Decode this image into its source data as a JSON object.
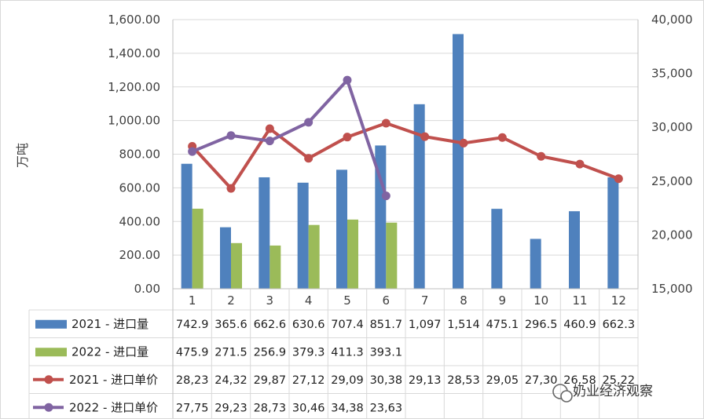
{
  "chart_data": {
    "type": "bar",
    "ylabel": "万吨",
    "categories": [
      "1",
      "2",
      "3",
      "4",
      "5",
      "6",
      "7",
      "8",
      "9",
      "10",
      "11",
      "12"
    ],
    "ylim": [
      0,
      1600
    ],
    "y_ticks": [
      "0.00",
      "200.00",
      "400.00",
      "600.00",
      "800.00",
      "1,000.00",
      "1,200.00",
      "1,400.00",
      "1,600.00"
    ],
    "y2lim": [
      15000,
      40000
    ],
    "y2_ticks": [
      "15,000",
      "20,000",
      "25,000",
      "30,000",
      "35,000",
      "40,000"
    ],
    "grid": true,
    "legend": "table-below",
    "series": [
      {
        "name": "2021 - 进口量",
        "type": "bar",
        "axis": "left",
        "color": "#4f81bd",
        "values": [
          742.9,
          365.6,
          662.6,
          630.6,
          707.4,
          851.7,
          1097,
          1514,
          475.1,
          296.5,
          460.9,
          662.3
        ],
        "labels": [
          "742.9",
          "365.6",
          "662.6",
          "630.6",
          "707.4",
          "851.7",
          "1,097",
          "1,514",
          "475.1",
          "296.5",
          "460.9",
          "662.3"
        ]
      },
      {
        "name": "2022 - 进口量",
        "type": "bar",
        "axis": "left",
        "color": "#9bbb59",
        "values": [
          475.9,
          271.5,
          256.9,
          379.3,
          411.3,
          393.1,
          null,
          null,
          null,
          null,
          null,
          null
        ],
        "labels": [
          "475.9",
          "271.5",
          "256.9",
          "379.3",
          "411.3",
          "393.1",
          "",
          "",
          "",
          "",
          "",
          ""
        ]
      },
      {
        "name": "2021 - 进口单价",
        "type": "line",
        "axis": "right",
        "color": "#c0504d",
        "values": [
          28230,
          24320,
          29870,
          27120,
          29090,
          30380,
          29130,
          28530,
          29050,
          27300,
          26580,
          25220
        ],
        "labels": [
          "28,23",
          "24,32",
          "29,87",
          "27,12",
          "29,09",
          "30,38",
          "29,13",
          "28,53",
          "29,05",
          "27,30",
          "26,58",
          "25,22"
        ]
      },
      {
        "name": "2022 - 进口单价",
        "type": "line",
        "axis": "right",
        "color": "#8064a2",
        "values": [
          27750,
          29230,
          28730,
          30460,
          34380,
          23630,
          null,
          null,
          null,
          null,
          null,
          null
        ],
        "labels": [
          "27,75",
          "29,23",
          "28,73",
          "30,46",
          "34,38",
          "23,63",
          "",
          "",
          "",
          "",
          "",
          ""
        ]
      }
    ]
  },
  "watermark": {
    "text": "奶业经济观察",
    "icon": "wechat-icon"
  }
}
